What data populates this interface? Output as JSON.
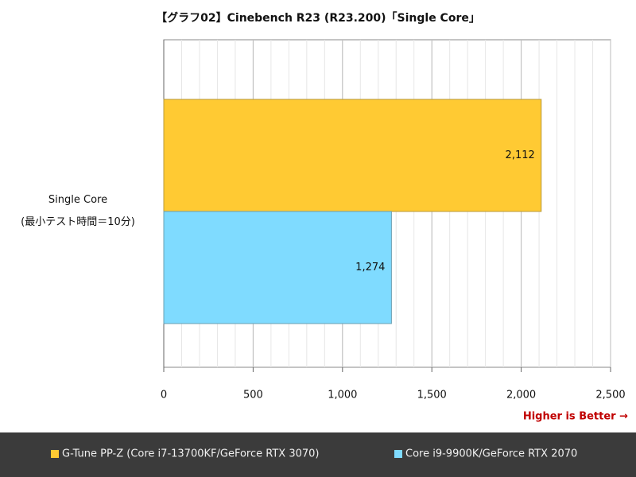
{
  "chart_data": {
    "type": "hbar",
    "title": "【グラフ02】Cinebench R23 (R23.200)「Single Core」",
    "categories": [
      "Single Core\n(最小テスト時間＝10分)"
    ],
    "series": [
      {
        "name": "G-Tune PP-Z (Core i7-13700KF/GeForce RTX 3070)",
        "color": "#ffca33",
        "values": [
          2112
        ],
        "value_labels": [
          "2,112"
        ]
      },
      {
        "name": "Core i9-9900K/GeForce RTX 2070",
        "color": "#7fdbff",
        "values": [
          1274
        ],
        "value_labels": [
          "1,274"
        ]
      }
    ],
    "xlim": [
      0,
      2500
    ],
    "xticks": [
      0,
      500,
      {
        "value": 1000,
        "label": "1,000"
      },
      {
        "value": 1500,
        "label": "1,500"
      },
      {
        "value": 2000,
        "label": "2,000"
      },
      {
        "value": 2500,
        "label": "2,500"
      }
    ],
    "minor_grid_step": 100,
    "grid": true,
    "annotation": "Higher is Better →",
    "legend": "bottom"
  }
}
